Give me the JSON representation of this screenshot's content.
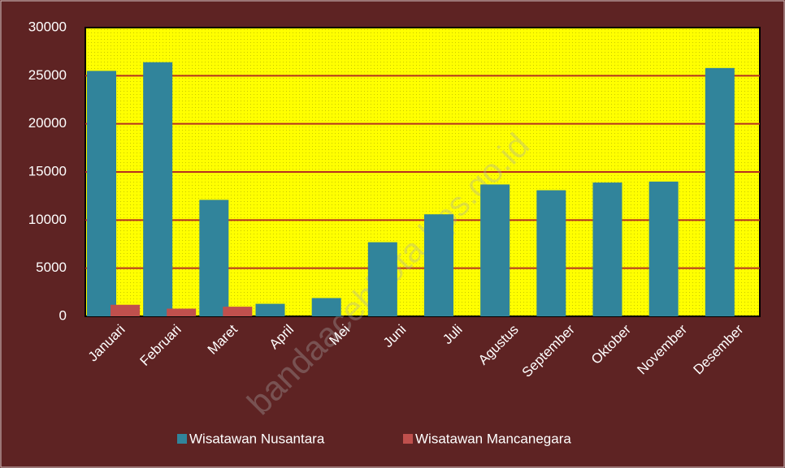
{
  "chart_data": {
    "type": "bar",
    "categories": [
      "Januari",
      "Februari",
      "Maret",
      "April",
      "Mei",
      "Juni",
      "Juli",
      "Agustus",
      "September",
      "Oktober",
      "November",
      "Desember"
    ],
    "series": [
      {
        "name": "Wisatawan Nusantara",
        "color": "#31849b",
        "values": [
          25500,
          26400,
          12100,
          1300,
          1900,
          7700,
          10600,
          13700,
          13100,
          13900,
          14000,
          25800
        ]
      },
      {
        "name": "Wisatawan Mancanegara",
        "color": "#c0504d",
        "values": [
          1200,
          800,
          1000,
          0,
          0,
          0,
          0,
          0,
          0,
          0,
          0,
          0
        ]
      }
    ],
    "ylim": [
      0,
      30000
    ],
    "yticks": [
      0,
      5000,
      10000,
      15000,
      20000,
      25000,
      30000
    ],
    "grid": true,
    "legend": "bottom",
    "watermark": "bandaacehkota.bps.go.id"
  }
}
